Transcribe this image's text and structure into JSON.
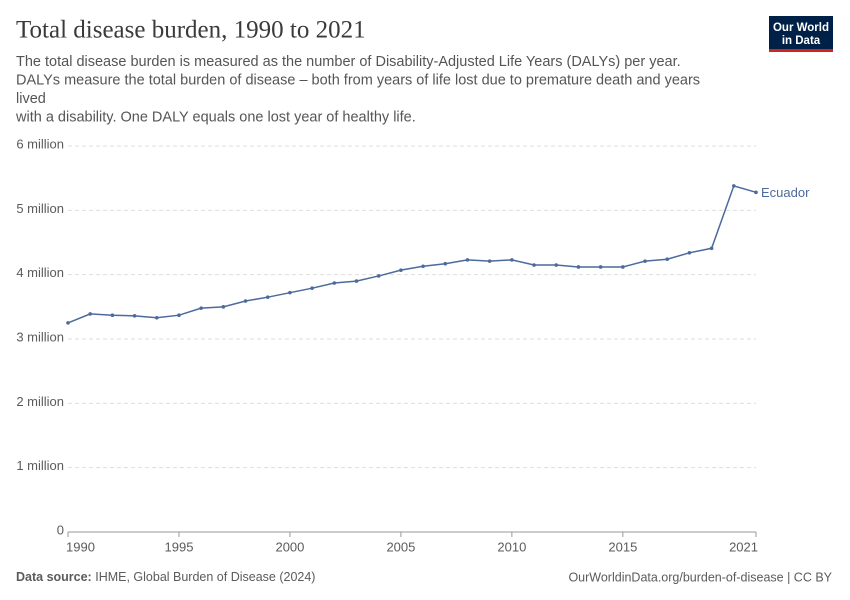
{
  "chart_data": {
    "type": "line",
    "title": "Total disease burden, 1990 to 2021",
    "subtitle": [
      "The total disease burden is measured as the number of Disability-Adjusted Life Years (DALYs) per year.",
      "DALYs measure the total burden of disease – both from years of life lost due to premature death and years",
      "lived",
      "with a disability. One DALY equals one lost year of healthy life."
    ],
    "logo": [
      "Our World",
      "in Data"
    ],
    "source_label": "Data source:",
    "source": "IHME, Global Burden of Disease (2024)",
    "url": "OurWorldinData.org/burden-of-disease | CC BY",
    "x": [
      1990,
      1991,
      1992,
      1993,
      1994,
      1995,
      1996,
      1997,
      1998,
      1999,
      2000,
      2001,
      2002,
      2003,
      2004,
      2005,
      2006,
      2007,
      2008,
      2009,
      2010,
      2011,
      2012,
      2013,
      2014,
      2015,
      2016,
      2017,
      2018,
      2019,
      2020,
      2021
    ],
    "series": [
      {
        "name": "Ecuador",
        "color": "#4c6a9c",
        "values": [
          3250000,
          3390000,
          3370000,
          3360000,
          3330000,
          3370000,
          3480000,
          3500000,
          3590000,
          3650000,
          3720000,
          3790000,
          3870000,
          3900000,
          3980000,
          4070000,
          4130000,
          4170000,
          4230000,
          4210000,
          4230000,
          4150000,
          4150000,
          4120000,
          4120000,
          4120000,
          4210000,
          4240000,
          4340000,
          4410000,
          5380000,
          5280000
        ]
      }
    ],
    "xlim": [
      1990,
      2021
    ],
    "xticks": [
      1990,
      1995,
      2000,
      2005,
      2010,
      2015,
      2021
    ],
    "ylim": [
      0,
      6000000
    ],
    "yticks": [
      0,
      {
        "value": 1000000,
        "label": "1 million"
      },
      {
        "value": 2000000,
        "label": "2 million"
      },
      {
        "value": 3000000,
        "label": "3 million"
      },
      {
        "value": 4000000,
        "label": "4 million"
      },
      {
        "value": 5000000,
        "label": "5 million"
      },
      {
        "value": 6000000,
        "label": "6 million"
      }
    ],
    "grid": true
  }
}
